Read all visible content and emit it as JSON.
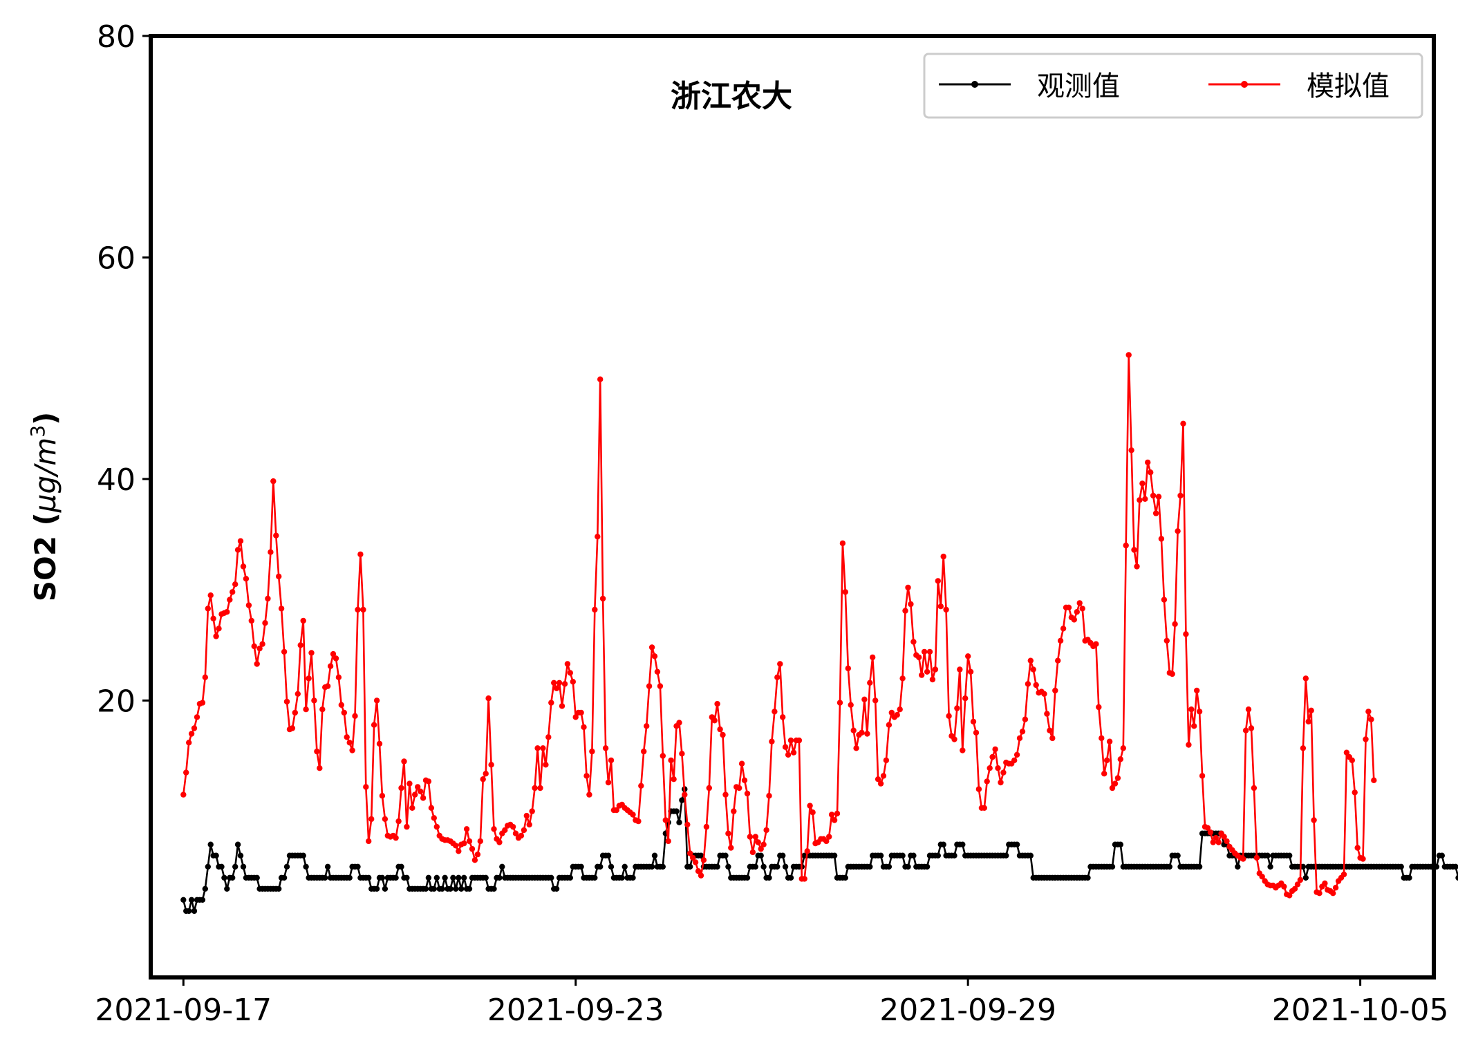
{
  "chart_data": {
    "type": "line",
    "title": "浙江农大",
    "xlabel": "",
    "ylabel": {
      "main": "SO2 (",
      "unit_mu": "μ",
      "unit_g_over_m": "g/m",
      "unit_power": "3",
      "close": ")"
    },
    "xlim": [
      "2021-09-16T12:00",
      "2021-10-06T03:00"
    ],
    "ylim": [
      -5,
      80
    ],
    "x_ticks": [
      "2021-09-17",
      "2021-09-23",
      "2021-09-29",
      "2021-10-05"
    ],
    "y_ticks": [
      20,
      40,
      60,
      80
    ],
    "grid": false,
    "legend": "top-right",
    "start": "2021-09-17T00:00",
    "step_hours": 1,
    "series": [
      {
        "name": "观测值",
        "color": "#000000",
        "values": [
          2,
          1,
          1,
          2,
          1,
          2,
          2,
          2,
          3,
          5,
          7,
          6,
          6,
          5,
          5,
          4,
          3,
          4,
          4,
          5,
          7,
          6,
          5,
          4,
          4,
          4,
          4,
          4,
          3,
          3,
          3,
          3,
          3,
          3,
          3,
          3,
          4,
          4,
          5,
          6,
          6,
          6,
          6,
          6,
          6,
          5,
          4,
          4,
          4,
          4,
          4,
          4,
          4,
          5,
          4,
          4,
          4,
          4,
          4,
          4,
          4,
          4,
          5,
          5,
          5,
          4,
          4,
          4,
          4,
          3,
          3,
          3,
          4,
          4,
          3,
          4,
          4,
          4,
          4,
          5,
          5,
          4,
          4,
          3,
          3,
          3,
          3,
          3,
          3,
          3,
          4,
          3,
          3,
          4,
          3,
          3,
          4,
          3,
          3,
          4,
          3,
          4,
          3,
          4,
          3,
          3,
          4,
          4,
          4,
          4,
          4,
          4,
          3,
          3,
          3,
          4,
          4,
          5,
          4,
          4,
          4,
          4,
          4,
          4,
          4,
          4,
          4,
          4,
          4,
          4,
          4,
          4,
          4,
          4,
          4,
          4,
          3,
          3,
          4,
          4,
          4,
          4,
          4,
          5,
          5,
          5,
          5,
          4,
          4,
          4,
          4,
          4,
          5,
          5,
          6,
          6,
          6,
          5,
          4,
          4,
          4,
          4,
          5,
          4,
          4,
          4,
          5,
          5,
          5,
          5,
          5,
          5,
          5,
          6,
          5,
          5,
          5,
          8,
          9,
          10,
          10,
          10,
          9,
          11,
          12,
          5,
          5,
          6,
          6,
          6,
          6,
          5,
          5,
          5,
          5,
          5,
          5,
          6,
          6,
          6,
          5,
          4,
          4,
          4,
          4,
          4,
          4,
          4,
          5,
          5,
          5,
          6,
          6,
          5,
          4,
          4,
          5,
          5,
          5,
          6,
          6,
          5,
          4,
          4,
          5,
          5,
          5,
          5,
          6,
          6,
          6,
          6,
          6,
          6,
          6,
          6,
          6,
          6,
          6,
          6,
          4,
          4,
          4,
          4,
          5,
          5,
          5,
          5,
          5,
          5,
          5,
          5,
          5,
          6,
          6,
          6,
          6,
          5,
          5,
          5,
          6,
          6,
          6,
          6,
          6,
          5,
          5,
          6,
          6,
          5,
          5,
          5,
          5,
          5,
          6,
          6,
          6,
          6,
          7,
          7,
          6,
          6,
          6,
          6,
          7,
          7,
          7,
          6,
          6,
          6,
          6,
          6,
          6,
          6,
          6,
          6,
          6,
          6,
          6,
          6,
          6,
          6,
          6,
          7,
          7,
          7,
          7,
          6,
          6,
          6,
          6,
          6,
          4,
          4,
          4,
          4,
          4,
          4,
          4,
          4,
          4,
          4,
          4,
          4,
          4,
          4,
          4,
          4,
          4,
          4,
          4,
          4,
          4,
          5,
          5,
          5,
          5,
          5,
          5,
          5,
          5,
          5,
          7,
          7,
          7,
          5,
          5,
          5,
          5,
          5,
          5,
          5,
          5,
          5,
          5,
          5,
          5,
          5,
          5,
          5,
          5,
          5,
          5,
          6,
          6,
          6,
          5,
          5,
          5,
          5,
          5,
          5,
          5,
          5,
          8,
          8,
          8,
          8,
          8,
          8,
          8,
          8,
          7,
          7,
          6,
          6,
          6,
          5,
          6,
          6,
          6,
          6,
          6,
          6,
          6,
          6,
          6,
          6,
          6,
          5,
          6,
          6,
          6,
          6,
          6,
          6,
          6,
          5,
          5,
          5,
          5,
          5,
          4,
          5,
          5,
          5,
          5,
          5,
          5,
          5,
          5,
          5,
          5,
          5,
          5,
          5,
          5,
          5,
          5,
          5,
          5,
          5,
          5,
          5,
          5,
          5,
          5,
          5,
          5,
          5,
          5,
          5,
          5,
          5,
          5,
          5,
          5,
          5,
          4,
          4,
          4,
          5,
          5,
          5,
          5,
          5,
          5,
          5,
          5,
          5,
          5,
          6,
          6,
          5,
          5,
          5,
          5,
          5,
          4,
          4,
          4,
          4,
          5,
          5,
          4,
          5,
          5,
          5,
          5,
          5,
          5,
          5,
          6,
          6,
          5,
          5,
          5,
          5,
          5,
          5,
          5,
          5,
          5,
          5,
          5,
          5,
          5,
          5,
          5,
          5,
          5,
          5,
          5,
          5,
          5,
          5,
          5,
          5,
          5,
          5,
          5,
          5,
          5,
          5,
          5,
          5,
          5,
          5,
          5,
          5,
          5,
          5,
          5,
          5,
          5,
          5,
          5,
          5,
          5,
          5,
          5,
          5,
          5,
          5,
          5,
          5,
          5,
          5,
          5,
          5,
          5,
          5,
          5,
          5,
          5,
          5,
          5,
          5,
          5,
          5,
          5,
          5,
          5,
          5,
          5,
          5,
          5,
          5,
          5,
          5,
          5,
          5,
          5,
          5,
          5,
          5,
          5,
          5,
          5,
          5,
          5,
          5,
          5,
          5,
          5,
          5,
          5,
          5,
          5,
          5,
          5,
          5,
          5,
          5,
          5,
          5,
          5,
          5,
          5,
          5,
          5,
          5,
          5,
          5,
          5,
          5,
          5,
          5,
          5,
          5,
          5,
          5,
          5,
          5,
          5,
          5,
          5,
          5,
          5,
          5,
          5,
          5,
          5,
          5,
          5,
          5,
          5,
          5,
          5,
          5,
          5,
          5,
          5,
          5,
          5,
          5,
          5,
          5,
          5,
          5,
          5,
          5,
          5,
          5,
          5,
          5,
          5,
          5,
          5,
          5,
          5,
          5,
          5,
          5,
          5,
          5,
          5,
          5
        ]
      },
      {
        "name": "模拟值",
        "color": "#ff0000",
        "values": [
          11.5,
          13.5,
          16.2,
          17.0,
          17.5,
          18.5,
          19.7,
          19.8,
          22.1,
          28.3,
          29.5,
          27.4,
          25.8,
          26.5,
          27.8,
          27.9,
          28.0,
          29.1,
          29.8,
          30.5,
          33.6,
          34.4,
          32.1,
          31.0,
          28.6,
          27.2,
          24.9,
          23.3,
          24.7,
          25.1,
          27.0,
          29.2,
          33.4,
          39.8,
          34.9,
          31.2,
          28.3,
          24.4,
          19.9,
          17.4,
          17.5,
          18.9,
          20.6,
          25.0,
          27.2,
          19.2,
          22.0,
          24.3,
          20.0,
          15.4,
          13.9,
          19.2,
          21.2,
          21.3,
          23.1,
          24.2,
          23.8,
          22.1,
          19.6,
          18.9,
          16.7,
          16.2,
          15.5,
          18.6,
          28.2,
          33.2,
          28.2,
          12.2,
          7.3,
          9.3,
          17.8,
          20.0,
          16.1,
          11.4,
          9.3,
          7.8,
          7.7,
          7.8,
          7.6,
          9.1,
          12.1,
          14.5,
          8.6,
          12.5,
          10.3,
          11.5,
          12.2,
          11.8,
          11.2,
          12.8,
          12.7,
          10.3,
          9.4,
          8.6,
          7.8,
          7.5,
          7.4,
          7.4,
          7.3,
          7.1,
          6.9,
          6.4,
          7.0,
          7.1,
          8.4,
          7.3,
          6.6,
          5.6,
          6.1,
          7.3,
          12.9,
          13.4,
          20.2,
          14.2,
          8.4,
          7.5,
          7.2,
          8.0,
          8.3,
          8.7,
          8.8,
          8.6,
          8.0,
          7.6,
          7.8,
          8.3,
          9.6,
          8.8,
          10.0,
          12.1,
          15.7,
          12.1,
          15.7,
          14.2,
          16.7,
          19.8,
          21.6,
          21.1,
          21.6,
          19.5,
          21.5,
          23.3,
          22.5,
          21.7,
          18.5,
          18.9,
          18.9,
          17.6,
          13.2,
          11.5,
          15.4,
          28.2,
          34.8,
          49.0,
          29.2,
          15.7,
          12.6,
          14.6,
          10.1,
          10.1,
          10.5,
          10.6,
          10.3,
          10.1,
          9.9,
          9.7,
          9.2,
          9.1,
          12.3,
          15.4,
          17.7,
          21.3,
          24.8,
          24.0,
          22.6,
          21.3,
          15.0,
          9.2,
          7.3,
          14.6,
          12.9,
          17.7,
          18.0,
          15.2,
          11.5,
          8.8,
          6.2,
          5.8,
          5.4,
          4.6,
          4.2,
          5.6,
          8.6,
          12.1,
          18.5,
          18.2,
          19.7,
          17.4,
          16.9,
          11.5,
          8.0,
          6.7,
          10.0,
          12.2,
          12.1,
          14.3,
          12.8,
          11.6,
          7.7,
          6.3,
          7.7,
          7.2,
          6.6,
          7.0,
          8.3,
          11.4,
          16.3,
          19.0,
          22.1,
          23.3,
          18.5,
          15.8,
          15.1,
          16.4,
          15.3,
          16.4,
          16.4,
          3.9,
          3.9,
          6.4,
          10.5,
          9.9,
          7.1,
          7.2,
          7.5,
          7.5,
          7.3,
          7.7,
          9.7,
          9.2,
          9.8,
          19.8,
          34.2,
          29.8,
          22.9,
          19.6,
          17.3,
          15.7,
          16.9,
          17.1,
          20.1,
          17.0,
          21.6,
          23.9,
          20.0,
          12.9,
          12.5,
          13.2,
          14.6,
          17.8,
          18.9,
          18.5,
          18.7,
          19.2,
          22.0,
          28.1,
          30.2,
          28.7,
          25.3,
          24.1,
          23.9,
          22.3,
          24.4,
          22.6,
          24.4,
          21.9,
          22.8,
          30.8,
          28.5,
          33.0,
          28.2,
          18.6,
          16.8,
          16.5,
          19.3,
          22.8,
          15.5,
          20.2,
          24.0,
          22.6,
          18.1,
          17.1,
          12.0,
          10.3,
          10.3,
          12.7,
          13.9,
          14.9,
          15.6,
          13.9,
          12.6,
          13.5,
          14.4,
          14.3,
          14.3,
          14.6,
          15.1,
          16.6,
          17.2,
          18.3,
          21.5,
          23.6,
          22.8,
          21.4,
          20.7,
          20.8,
          20.6,
          18.8,
          17.3,
          16.6,
          20.9,
          23.6,
          25.4,
          26.5,
          28.4,
          28.4,
          27.5,
          27.3,
          28.0,
          28.8,
          28.3,
          25.4,
          25.5,
          25.2,
          24.9,
          25.1,
          19.4,
          16.6,
          13.4,
          14.6,
          16.3,
          12.1,
          12.5,
          13.0,
          14.7,
          15.7,
          34.0,
          51.2,
          42.6,
          33.6,
          32.1,
          38.1,
          39.6,
          38.2,
          41.5,
          40.6,
          38.5,
          36.9,
          38.4,
          34.6,
          29.1,
          25.4,
          22.5,
          22.4,
          26.9,
          35.3,
          38.5,
          45.0,
          26.0,
          16.0,
          19.2,
          17.7,
          20.9,
          19.0,
          13.2,
          8.6,
          8.5,
          8.1,
          7.2,
          7.6,
          7.2,
          8.0,
          7.7,
          7.3,
          6.8,
          6.5,
          6.2,
          6.0,
          5.8,
          5.7,
          17.3,
          19.2,
          17.5,
          12.1,
          5.8,
          4.4,
          4.1,
          3.7,
          3.4,
          3.3,
          3.3,
          3.1,
          3.3,
          3.5,
          3.2,
          2.5,
          2.4,
          2.8,
          3.0,
          3.4,
          3.8,
          15.7,
          22.0,
          18.1,
          19.1,
          9.2,
          2.7,
          2.6,
          3.2,
          3.5,
          2.9,
          2.8,
          2.6,
          3.1,
          3.7,
          4.0,
          4.3,
          15.3,
          14.9,
          14.6,
          11.7,
          6.7,
          5.8,
          5.7,
          16.5,
          19.0,
          18.3,
          12.8
        ]
      }
    ]
  }
}
